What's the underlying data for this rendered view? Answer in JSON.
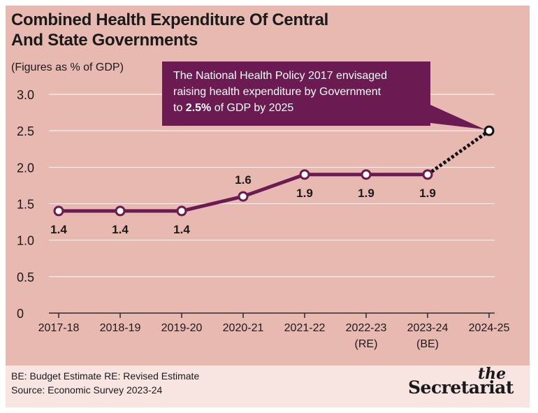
{
  "header": {
    "title_line1": "Combined Health Expenditure Of Central",
    "title_line2": "And State Governments",
    "subtitle": "(Figures as % of GDP)"
  },
  "callout": {
    "line1": "The National Health Policy 2017 envisaged",
    "line2": "raising health expenditure by Government",
    "line3_prefix": "to ",
    "line3_bold": "2.5%",
    "line3_suffix": " of GDP by 2025"
  },
  "footer": {
    "line1": "BE: Budget Estimate  RE: Revised Estimate",
    "line2": "Source: Economic Survey 2023-24",
    "logo_small": "the",
    "logo_main": "Secretariat"
  },
  "colors": {
    "background": "#e8b9b1",
    "footer_bg": "#f8e4e1",
    "line": "#6b1b52",
    "grid": "#ffffff",
    "text": "#1a1a1a"
  },
  "chart_data": {
    "type": "line",
    "title": "Combined Health Expenditure Of Central And State Governments",
    "ylabel": "(Figures as % of GDP)",
    "categories": [
      "2017-18",
      "2018-19",
      "2019-20",
      "2020-21",
      "2021-22",
      "2022-23",
      "2023-24",
      "2024-25"
    ],
    "category_notes": [
      "",
      "",
      "",
      "",
      "",
      "(RE)",
      "(BE)",
      ""
    ],
    "yticks": [
      "0",
      "0.5",
      "1.0",
      "1.5",
      "2.0",
      "2.5",
      "3.0"
    ],
    "ylim": [
      0,
      3.0
    ],
    "grid": true,
    "series": [
      {
        "values": [
          1.4,
          1.4,
          1.4,
          1.6,
          1.9,
          1.9,
          1.9,
          null
        ],
        "labels": [
          "1.4",
          "1.4",
          "1.4",
          "1.6",
          "1.9",
          "1.9",
          "1.9",
          ""
        ],
        "style": "solid"
      },
      {
        "values": [
          null,
          null,
          null,
          null,
          null,
          null,
          1.9,
          2.5
        ],
        "labels": [
          "",
          "",
          "",
          "",
          "",
          "",
          "",
          ""
        ],
        "style": "dotted"
      }
    ]
  }
}
